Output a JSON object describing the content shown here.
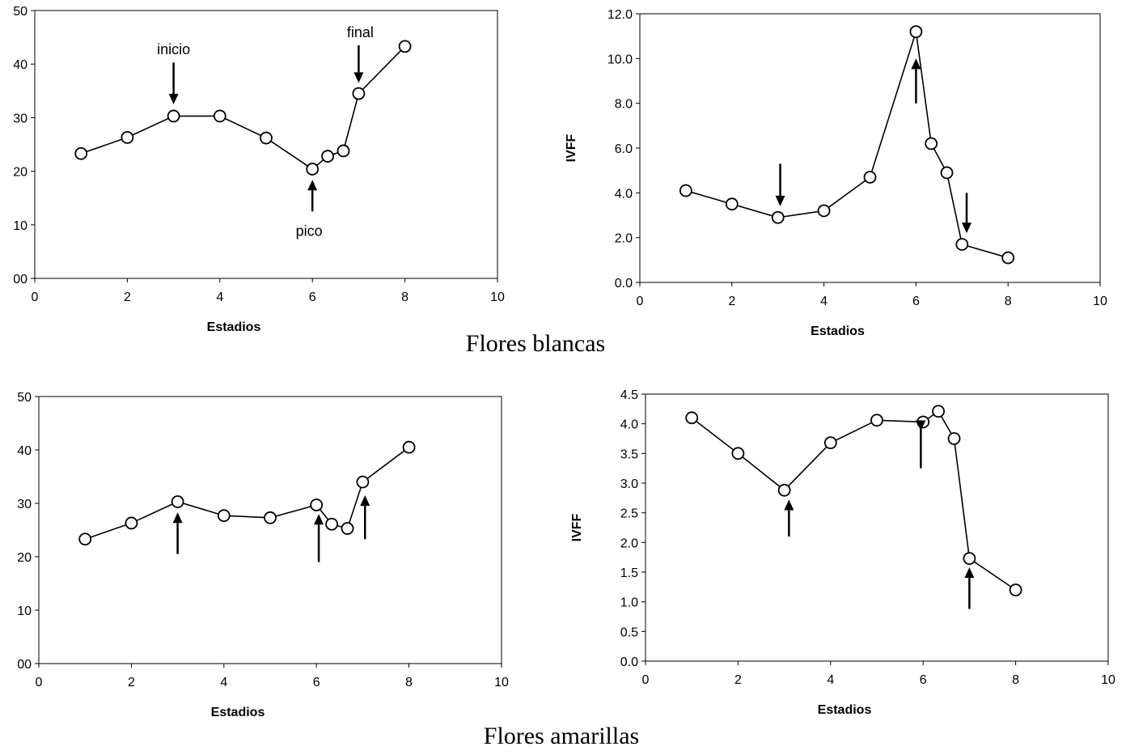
{
  "captions": {
    "top": "Flores blancas",
    "bottom": "Flores amarillas"
  },
  "chart_data": [
    {
      "type": "line",
      "title": "",
      "xlabel": "Estadios",
      "ylabel": "",
      "xlim": [
        0,
        10
      ],
      "ylim": [
        0,
        50
      ],
      "xticks": [
        "0",
        "2",
        "4",
        "6",
        "8",
        "10"
      ],
      "yticks": [
        "00",
        "10",
        "20",
        "30",
        "40",
        "50"
      ],
      "grid": false,
      "x": [
        1,
        2,
        3,
        4,
        5,
        6,
        6.33,
        6.67,
        7,
        8
      ],
      "y": [
        23.3,
        26.3,
        30.3,
        30.3,
        26.2,
        20.4,
        22.8,
        23.8,
        34.5,
        43.3
      ],
      "arrows": [
        {
          "x": 3,
          "dir": "down",
          "y_from": 40.3,
          "y_to": 32.5,
          "label": "inicio"
        },
        {
          "x": 6,
          "dir": "up",
          "y_from": 12.5,
          "y_to": 18.4,
          "label": "pico"
        },
        {
          "x": 7,
          "dir": "down",
          "y_from": 43.5,
          "y_to": 36.5,
          "label": "final"
        }
      ]
    },
    {
      "type": "line",
      "title": "",
      "xlabel": "Estadios",
      "ylabel": "IVFF",
      "xlim": [
        0,
        10
      ],
      "ylim": [
        0,
        12
      ],
      "xticks": [
        "0",
        "2",
        "4",
        "6",
        "8",
        "10"
      ],
      "yticks": [
        "0.0",
        "2.0",
        "4.0",
        "6.0",
        "8.0",
        "10.0",
        "12.0"
      ],
      "grid": false,
      "x": [
        1,
        2,
        3,
        4,
        5,
        6,
        6.33,
        6.67,
        7,
        8
      ],
      "y": [
        4.1,
        3.5,
        2.9,
        3.2,
        4.7,
        11.2,
        6.2,
        4.9,
        1.7,
        1.1
      ],
      "arrows": [
        {
          "x": 3.05,
          "dir": "down",
          "y_from": 5.3,
          "y_to": 3.4,
          "label": ""
        },
        {
          "x": 6.0,
          "dir": "up",
          "y_from": 8.0,
          "y_to": 10.0,
          "label": ""
        },
        {
          "x": 7.1,
          "dir": "down",
          "y_from": 4.0,
          "y_to": 2.2,
          "label": ""
        }
      ]
    },
    {
      "type": "line",
      "title": "",
      "xlabel": "Estadios",
      "ylabel": "",
      "xlim": [
        0,
        10
      ],
      "ylim": [
        0,
        50
      ],
      "xticks": [
        "0",
        "2",
        "4",
        "6",
        "8",
        "10"
      ],
      "yticks": [
        "00",
        "10",
        "20",
        "30",
        "40",
        "50"
      ],
      "grid": false,
      "x": [
        1,
        2,
        3,
        4,
        5,
        6,
        6.33,
        6.67,
        7,
        8
      ],
      "y": [
        23.3,
        26.3,
        30.3,
        27.7,
        27.3,
        29.7,
        26.1,
        25.3,
        34.0,
        40.5
      ],
      "arrows": [
        {
          "x": 3.0,
          "dir": "up",
          "y_from": 20.5,
          "y_to": 28.3,
          "label": ""
        },
        {
          "x": 6.05,
          "dir": "up",
          "y_from": 19.0,
          "y_to": 28.0,
          "label": ""
        },
        {
          "x": 7.05,
          "dir": "up",
          "y_from": 23.3,
          "y_to": 31.5,
          "label": ""
        }
      ]
    },
    {
      "type": "line",
      "title": "",
      "xlabel": "Estadios",
      "ylabel": "IVFF",
      "xlim": [
        0,
        10
      ],
      "ylim": [
        0,
        4.5
      ],
      "xticks": [
        "0",
        "2",
        "4",
        "6",
        "8",
        "10"
      ],
      "yticks": [
        "0.0",
        "0.5",
        "1.0",
        "1.5",
        "2.0",
        "2.5",
        "3.0",
        "3.5",
        "4.0",
        "4.5"
      ],
      "grid": false,
      "x": [
        1,
        2,
        3,
        4,
        5,
        6,
        6.33,
        6.67,
        7,
        8
      ],
      "y": [
        4.1,
        3.5,
        2.88,
        3.68,
        4.06,
        4.03,
        4.21,
        3.75,
        1.73,
        1.2
      ],
      "arrows": [
        {
          "x": 3.1,
          "dir": "up",
          "y_from": 2.1,
          "y_to": 2.72,
          "label": ""
        },
        {
          "x": 5.95,
          "dir": "down",
          "y_from": 3.25,
          "y_to": 3.88,
          "label": ""
        },
        {
          "x": 7.0,
          "dir": "up",
          "y_from": 0.88,
          "y_to": 1.58,
          "label": ""
        }
      ]
    }
  ]
}
